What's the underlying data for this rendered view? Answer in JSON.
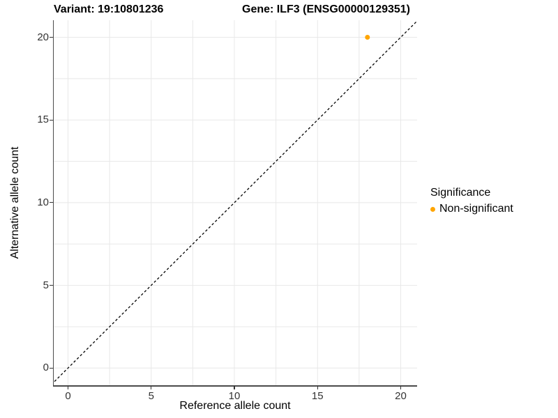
{
  "chart_data": {
    "type": "scatter",
    "title": "Variant: 19:10801236    Gene: ILF3 (ENSG00000129351)",
    "title_segments": [
      "Variant: 19:10801236",
      "Gene: ILF3 (ENSG00000129351)"
    ],
    "xlabel": "Reference allele count",
    "ylabel": "Alternative allele count",
    "xlim": [
      -0.9,
      21.0
    ],
    "ylim": [
      -1.05,
      21.0
    ],
    "x_ticks": [
      0,
      5,
      10,
      15,
      20
    ],
    "y_ticks": [
      0,
      5,
      10,
      15,
      20
    ],
    "grid": true,
    "minor_grid_step": 2.5,
    "identity_line": {
      "equation": "y = x",
      "style": "dashed",
      "color": "#000000"
    },
    "series": [
      {
        "name": "Non-significant",
        "color": "#FFA500",
        "points": [
          [
            18,
            20
          ]
        ]
      }
    ],
    "legend": {
      "title": "Significance",
      "position": "right",
      "items": [
        {
          "label": "Non-significant",
          "color": "#FFA500"
        }
      ]
    }
  },
  "colors": {
    "background": "#ffffff",
    "grid": "#e8e8e8",
    "axis_line": "#4a4a4a",
    "tick_text": "#333333",
    "text": "#000000",
    "point": "#FFA500"
  }
}
